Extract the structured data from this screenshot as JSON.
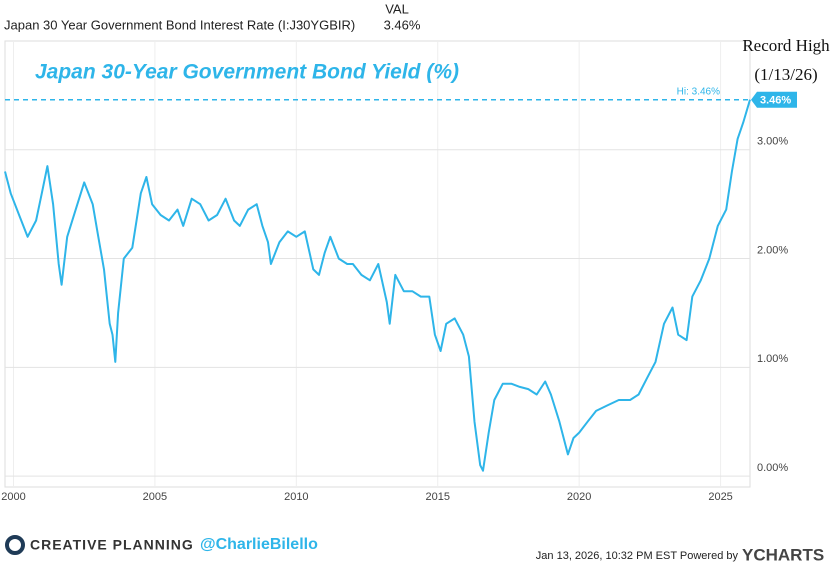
{
  "header": {
    "series_name": "Japan 30 Year Government Bond Interest Rate (I:J30YGBIR)",
    "column": "VAL",
    "value": "3.46%"
  },
  "chart_data": {
    "type": "line",
    "title": "Japan 30-Year Government Bond Yield (%)",
    "annotation": [
      "Record High",
      "(1/13/26)"
    ],
    "hi_label": "Hi: 3.46%",
    "last_label": "3.46%",
    "x": [
      1999.7,
      1999.9,
      2000.2,
      2000.5,
      2000.8,
      2001.0,
      2001.2,
      2001.4,
      2001.6,
      2001.7,
      2001.9,
      2002.2,
      2002.5,
      2002.8,
      2003.0,
      2003.2,
      2003.4,
      2003.5,
      2003.6,
      2003.7,
      2003.9,
      2004.2,
      2004.5,
      2004.7,
      2004.9,
      2005.2,
      2005.5,
      2005.8,
      2006.0,
      2006.3,
      2006.6,
      2006.9,
      2007.2,
      2007.5,
      2007.8,
      2008.0,
      2008.3,
      2008.6,
      2008.8,
      2009.0,
      2009.1,
      2009.4,
      2009.7,
      2010.0,
      2010.3,
      2010.6,
      2010.8,
      2011.0,
      2011.2,
      2011.5,
      2011.8,
      2012.0,
      2012.3,
      2012.6,
      2012.9,
      2013.2,
      2013.3,
      2013.5,
      2013.8,
      2014.1,
      2014.4,
      2014.7,
      2014.9,
      2015.1,
      2015.3,
      2015.6,
      2015.9,
      2016.1,
      2016.3,
      2016.5,
      2016.6,
      2016.8,
      2017.0,
      2017.3,
      2017.6,
      2017.9,
      2018.2,
      2018.5,
      2018.8,
      2019.0,
      2019.3,
      2019.6,
      2019.8,
      2020.0,
      2020.3,
      2020.6,
      2021.0,
      2021.4,
      2021.8,
      2022.1,
      2022.4,
      2022.7,
      2023.0,
      2023.3,
      2023.5,
      2023.8,
      2024.0,
      2024.3,
      2024.6,
      2024.9,
      2025.2,
      2025.4,
      2025.6,
      2025.8,
      2026.04
    ],
    "series": [
      {
        "name": "Japan 30 Year Government Bond Interest Rate",
        "color": "#2eb5e9",
        "values": [
          2.8,
          2.6,
          2.4,
          2.2,
          2.35,
          2.6,
          2.85,
          2.5,
          1.95,
          1.76,
          2.2,
          2.45,
          2.7,
          2.5,
          2.2,
          1.9,
          1.4,
          1.3,
          1.05,
          1.5,
          2.0,
          2.1,
          2.6,
          2.75,
          2.5,
          2.4,
          2.35,
          2.45,
          2.3,
          2.55,
          2.5,
          2.35,
          2.4,
          2.55,
          2.35,
          2.3,
          2.45,
          2.5,
          2.3,
          2.15,
          1.95,
          2.15,
          2.25,
          2.2,
          2.25,
          1.9,
          1.85,
          2.05,
          2.2,
          2.0,
          1.95,
          1.95,
          1.85,
          1.8,
          1.95,
          1.6,
          1.4,
          1.85,
          1.7,
          1.7,
          1.65,
          1.65,
          1.3,
          1.15,
          1.4,
          1.45,
          1.3,
          1.1,
          0.5,
          0.1,
          0.05,
          0.4,
          0.7,
          0.85,
          0.85,
          0.82,
          0.8,
          0.75,
          0.87,
          0.75,
          0.5,
          0.2,
          0.35,
          0.4,
          0.5,
          0.6,
          0.65,
          0.7,
          0.7,
          0.75,
          0.9,
          1.05,
          1.4,
          1.55,
          1.3,
          1.25,
          1.65,
          1.8,
          2.0,
          2.3,
          2.45,
          2.8,
          3.1,
          3.25,
          3.46
        ]
      }
    ],
    "xlim": [
      1999.7,
      2026.04
    ],
    "xticks": [
      2000,
      2005,
      2010,
      2015,
      2020,
      2025
    ],
    "ylim": [
      -0.1,
      4.0
    ],
    "yticks": [
      {
        "value": 0,
        "label": "0.00%"
      },
      {
        "value": 1,
        "label": "1.00%"
      },
      {
        "value": 2,
        "label": "2.00%"
      },
      {
        "value": 3,
        "label": "3.00%"
      }
    ],
    "grid": true
  },
  "footer": {
    "brand": "CREATIVE PLANNING",
    "handle": "@CharlieBilello",
    "timestamp": "Jan 13, 2026, 10:32 PM EST Powered by",
    "source": "YCHARTS"
  }
}
